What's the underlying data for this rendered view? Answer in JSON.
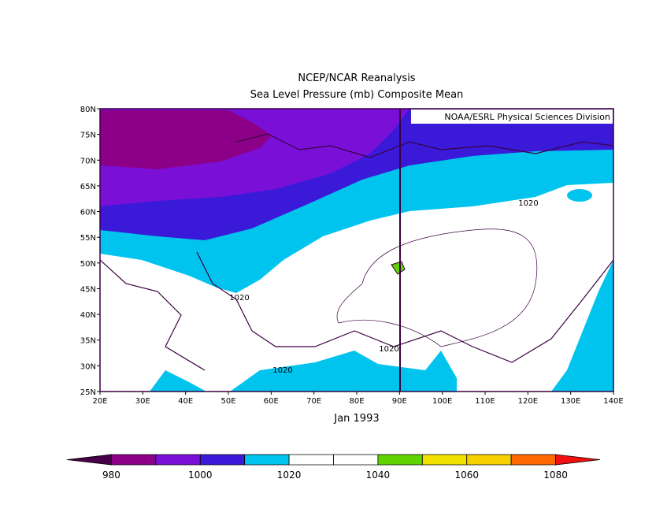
{
  "header": {
    "title": "NCEP/NCAR Reanalysis",
    "subtitle": "Sea Level Pressure (mb) Composite Mean"
  },
  "credit": "NOAA/ESRL Physical Sciences Division",
  "map": {
    "lat_labels": [
      "80N",
      "75N",
      "70N",
      "65N",
      "60N",
      "55N",
      "50N",
      "45N",
      "40N",
      "35N",
      "30N",
      "25N"
    ],
    "lon_labels": [
      "20E",
      "30E",
      "40E",
      "50E",
      "60E",
      "70E",
      "80E",
      "90E",
      "100E",
      "110E",
      "120E",
      "130E",
      "140E"
    ],
    "contour_labels": [
      "1020",
      "1020",
      "1020",
      "1020"
    ],
    "date": "Jan 1993"
  },
  "colorbar": {
    "colors": [
      "#4a0048",
      "#8c0088",
      "#7a10d8",
      "#3a1ad8",
      "#00c4ee",
      "#ffffff",
      "#ffffff",
      "#60d400",
      "#f2e000",
      "#f8d000",
      "#ff6800",
      "#f01010"
    ],
    "labels": [
      980,
      1000,
      1020,
      1040,
      1060,
      1080
    ]
  }
}
